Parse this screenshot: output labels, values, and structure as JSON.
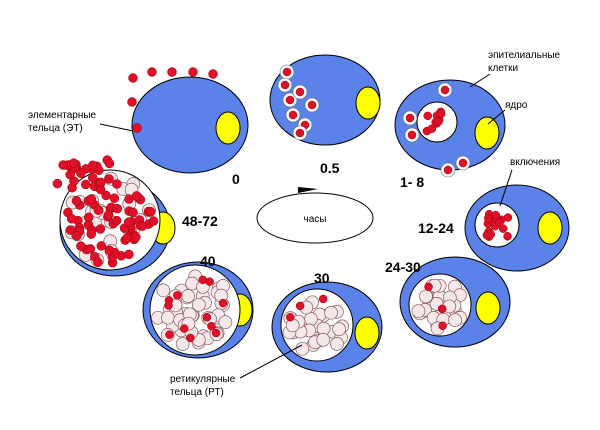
{
  "labels": {
    "elementary_bodies": [
      "элементарные",
      "тельца (ЭТ)"
    ],
    "epithelial_cells": [
      "эпителиальные",
      "клетки"
    ],
    "nucleus": "ядро",
    "inclusions": "включения",
    "reticulate_bodies": [
      "ретикулярные",
      "тельца (РТ)"
    ],
    "hours": "часы"
  },
  "stages": [
    {
      "time": "0"
    },
    {
      "time": "0.5"
    },
    {
      "time": "1- 8"
    },
    {
      "time": "12-24"
    },
    {
      "time": "24-30"
    },
    {
      "time": "30"
    },
    {
      "time": "40"
    },
    {
      "time": "48-72"
    }
  ]
}
